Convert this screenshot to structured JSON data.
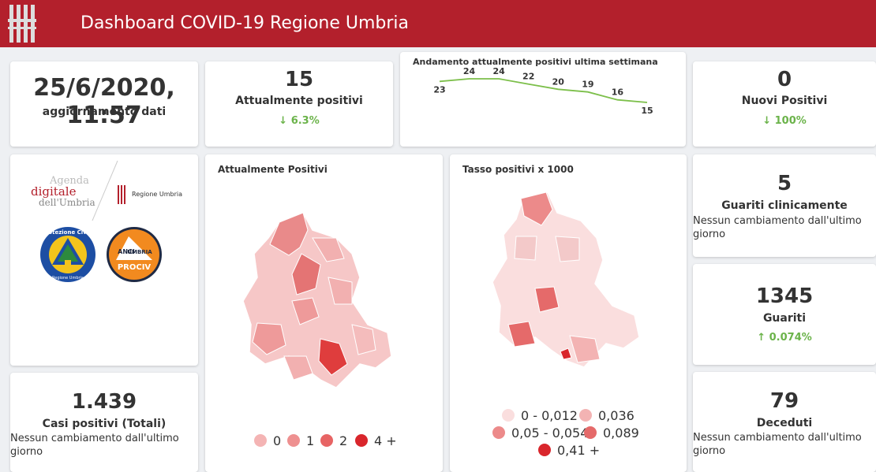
{
  "header": {
    "title": "Dashboard COVID-19 Regione Umbria"
  },
  "update": {
    "datetime": "25/6/2020, 11:57",
    "label": "aggiornamento dati"
  },
  "attualmente": {
    "value": "15",
    "label": "Attualmente positivi",
    "delta": "6.3%",
    "delta_icon": "arrow-down-icon"
  },
  "trend": {
    "chart_data": {
      "type": "line",
      "title": "Andamento attualmente positivi ultima settimana",
      "x": [
        1,
        2,
        3,
        4,
        5,
        6,
        7,
        8
      ],
      "values": [
        23,
        24,
        24,
        22,
        20,
        19,
        16,
        15
      ],
      "data_labels": [
        "23",
        "24",
        "24",
        "22",
        "20",
        "19",
        "16",
        "15"
      ],
      "color": "#7cbf4a"
    }
  },
  "nuovi": {
    "value": "0",
    "label": "Nuovi Positivi",
    "delta": "100%",
    "delta_icon": "arrow-down-icon"
  },
  "logos": {
    "agenda_line1": "Agenda",
    "agenda_line2": "digitale",
    "agenda_line3": "dell'Umbria",
    "regione": "Regione Umbria",
    "protezione": "Protezione Civile",
    "protezione_sub": "Regione Umbria",
    "anci_line1": "ANCI",
    "anci_line2": "UMBRIA",
    "anci_line3": "PROCIV"
  },
  "map1": {
    "title": "Attualmente Positivi",
    "legend": [
      {
        "label": "0",
        "color": "#f4b4b4"
      },
      {
        "label": "1",
        "color": "#ee9090"
      },
      {
        "label": "2",
        "color": "#e76464"
      },
      {
        "label": "4 +",
        "color": "#d9262c"
      }
    ]
  },
  "map2": {
    "title": "Tasso positivi x 1000",
    "legend": [
      {
        "label": "0 - 0,012",
        "color": "#fadede"
      },
      {
        "label": "0,036",
        "color": "#f3b3b3"
      },
      {
        "label": "0,05 - 0,054",
        "color": "#ec8a8a"
      },
      {
        "label": "0,089",
        "color": "#e56a6a"
      },
      {
        "label": "0,41 +",
        "color": "#d9262c"
      }
    ]
  },
  "guariti_clin": {
    "value": "5",
    "label": "Guariti clinicamente",
    "note": "Nessun cambiamento dall'ultimo giorno"
  },
  "guariti": {
    "value": "1345",
    "label": "Guariti",
    "delta": "0.074%",
    "delta_icon": "arrow-up-icon"
  },
  "casi": {
    "value": "1.439",
    "label": "Casi positivi (Totali)",
    "note": "Nessun cambiamento dall'ultimo giorno"
  },
  "deceduti": {
    "value": "79",
    "label": "Deceduti",
    "note": "Nessun cambiamento dall'ultimo giorno"
  },
  "colors": {
    "brand": "#b3202c",
    "positive_delta": "#6bb34a"
  }
}
